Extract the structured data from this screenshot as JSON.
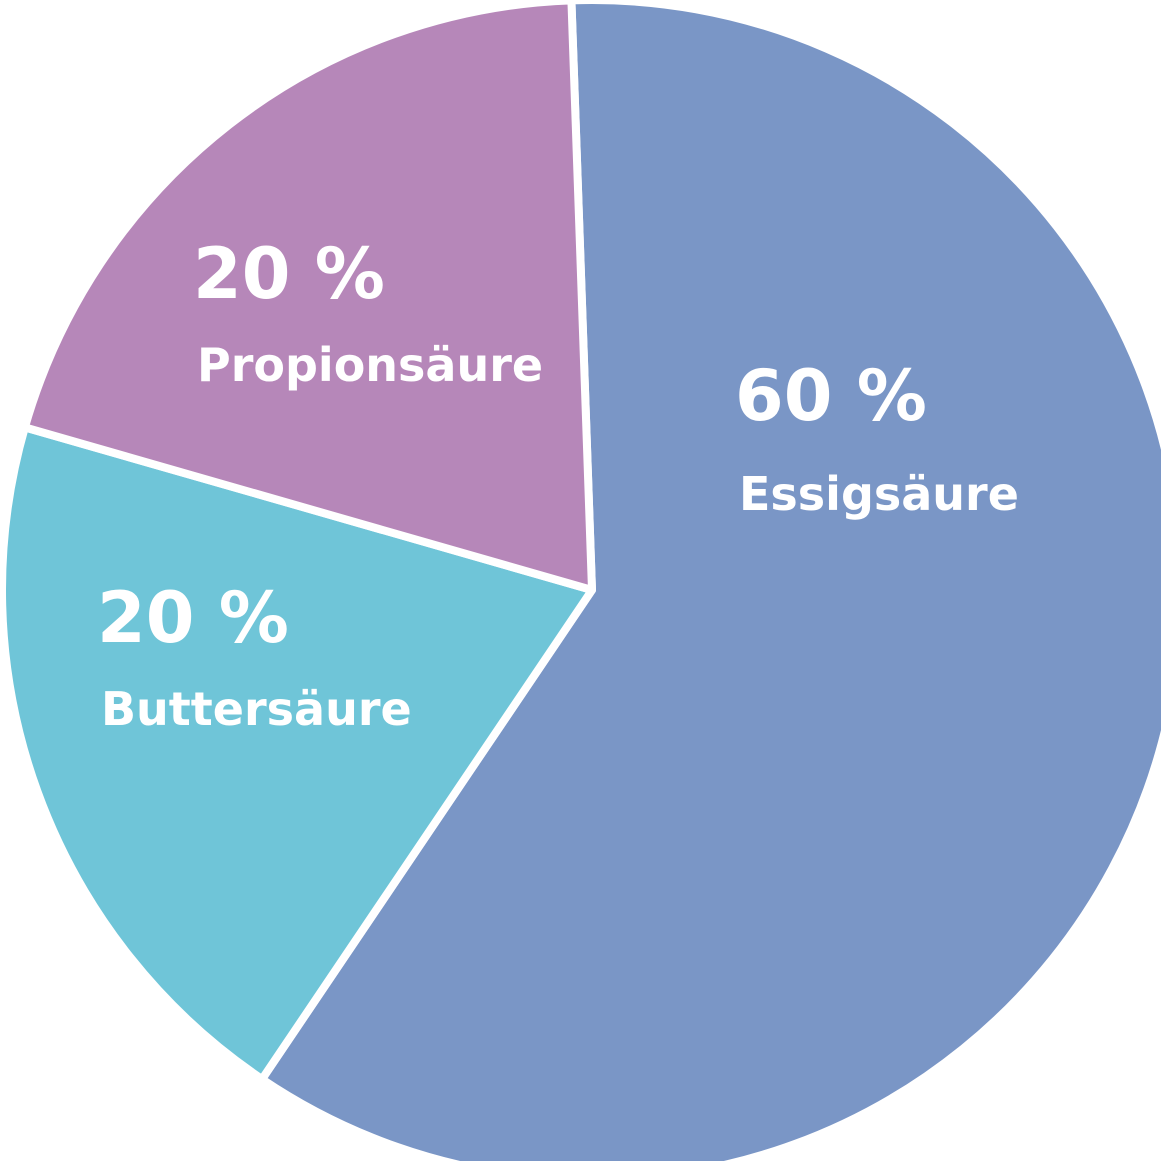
{
  "chart_data": {
    "type": "pie",
    "slices": [
      {
        "label": "Essigsäure",
        "value": 60,
        "value_text": "60 %",
        "color": "#7a96c6"
      },
      {
        "label": "Buttersäure",
        "value": 20,
        "value_text": "20 %",
        "color": "#6fc5d8"
      },
      {
        "label": "Propionsäure",
        "value": 20,
        "value_text": "20 %",
        "color": "#b687b9"
      }
    ]
  }
}
